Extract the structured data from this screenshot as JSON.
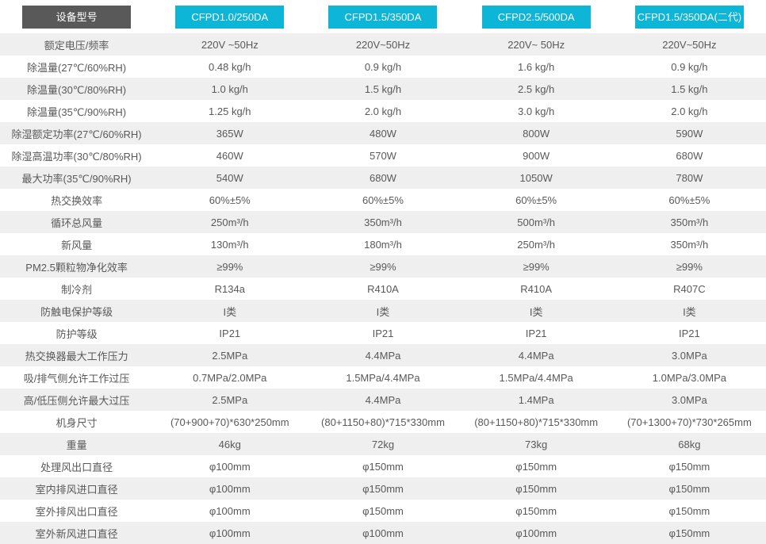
{
  "table": {
    "header": {
      "label": "设备型号",
      "models": [
        "CFPD1.0/250DA",
        "CFPD1.5/350DA",
        "CFPD2.5/500DA",
        "CFPD1.5/350DA(二代)"
      ]
    },
    "rows": [
      {
        "label": "额定电压/频率",
        "values": [
          "220V ~50Hz",
          "220V~50Hz",
          "220V~ 50Hz",
          "220V~50Hz"
        ]
      },
      {
        "label": "除温量(27℃/60%RH)",
        "values": [
          "0.48 kg/h",
          "0.9 kg/h",
          "1.6 kg/h",
          "0.9 kg/h"
        ]
      },
      {
        "label": "除温量(30℃/80%RH)",
        "values": [
          "1.0 kg/h",
          "1.5 kg/h",
          "2.5 kg/h",
          "1.5 kg/h"
        ]
      },
      {
        "label": "除温量(35℃/90%RH)",
        "values": [
          "1.25 kg/h",
          "2.0 kg/h",
          "3.0 kg/h",
          "2.0 kg/h"
        ]
      },
      {
        "label": "除湿额定功率(27℃/60%RH)",
        "values": [
          "365W",
          "480W",
          "800W",
          "590W"
        ]
      },
      {
        "label": "除湿高温功率(30℃/80%RH)",
        "values": [
          "460W",
          "570W",
          "900W",
          "680W"
        ]
      },
      {
        "label": "最大功率(35℃/90%RH)",
        "values": [
          "540W",
          "680W",
          "1050W",
          "780W"
        ]
      },
      {
        "label": "热交换效率",
        "values": [
          "60%±5%",
          "60%±5%",
          "60%±5%",
          "60%±5%"
        ]
      },
      {
        "label": "循环总风量",
        "values": [
          "250m³/h",
          "350m³/h",
          "500m³/h",
          "350m³/h"
        ]
      },
      {
        "label": "新风量",
        "values": [
          "130m³/h",
          "180m³/h",
          "250m³/h",
          "350m³/h"
        ]
      },
      {
        "label": "PM2.5颗粒物净化效率",
        "values": [
          "≥99%",
          "≥99%",
          "≥99%",
          "≥99%"
        ]
      },
      {
        "label": "制冷剂",
        "values": [
          "R134a",
          "R410A",
          "R410A",
          "R407C"
        ]
      },
      {
        "label": "防触电保护等级",
        "values": [
          "I类",
          "I类",
          "I类",
          "I类"
        ]
      },
      {
        "label": "防护等级",
        "values": [
          "IP21",
          "IP21",
          "IP21",
          "IP21"
        ]
      },
      {
        "label": "热交换器最大工作压力",
        "values": [
          "2.5MPa",
          "4.4MPa",
          "4.4MPa",
          "3.0MPa"
        ]
      },
      {
        "label": "吸/排气侧允许工作过压",
        "values": [
          "0.7MPa/2.0MPa",
          "1.5MPa/4.4MPa",
          "1.5MPa/4.4MPa",
          "1.0MPa/3.0MPa"
        ]
      },
      {
        "label": "高/低压侧允许最大过压",
        "values": [
          "2.5MPa",
          "4.4MPa",
          "1.4MPa",
          "3.0MPa"
        ]
      },
      {
        "label": "机身尺寸",
        "values": [
          "(70+900+70)*630*250mm",
          "(80+1150+80)*715*330mm",
          "(80+1150+80)*715*330mm",
          "(70+1300+70)*730*265mm"
        ]
      },
      {
        "label": "重量",
        "values": [
          "46kg",
          "72kg",
          "73kg",
          "68kg"
        ]
      },
      {
        "label": "处理风出口直径",
        "values": [
          "φ100mm",
          "φ150mm",
          "φ150mm",
          "φ150mm"
        ]
      },
      {
        "label": "室内排风进口直径",
        "values": [
          "φ100mm",
          "φ150mm",
          "φ150mm",
          "φ150mm"
        ]
      },
      {
        "label": "室外排风出口直径",
        "values": [
          "φ100mm",
          "φ150mm",
          "φ150mm",
          "φ150mm"
        ]
      },
      {
        "label": "室外新风进口直径",
        "values": [
          "φ100mm",
          "φ100mm",
          "φ100mm",
          "φ150mm"
        ]
      }
    ]
  },
  "colors": {
    "accent_cyan": "#0db5d7",
    "header_dark": "#595959",
    "row_alt": "#efefef",
    "text": "#595959"
  }
}
